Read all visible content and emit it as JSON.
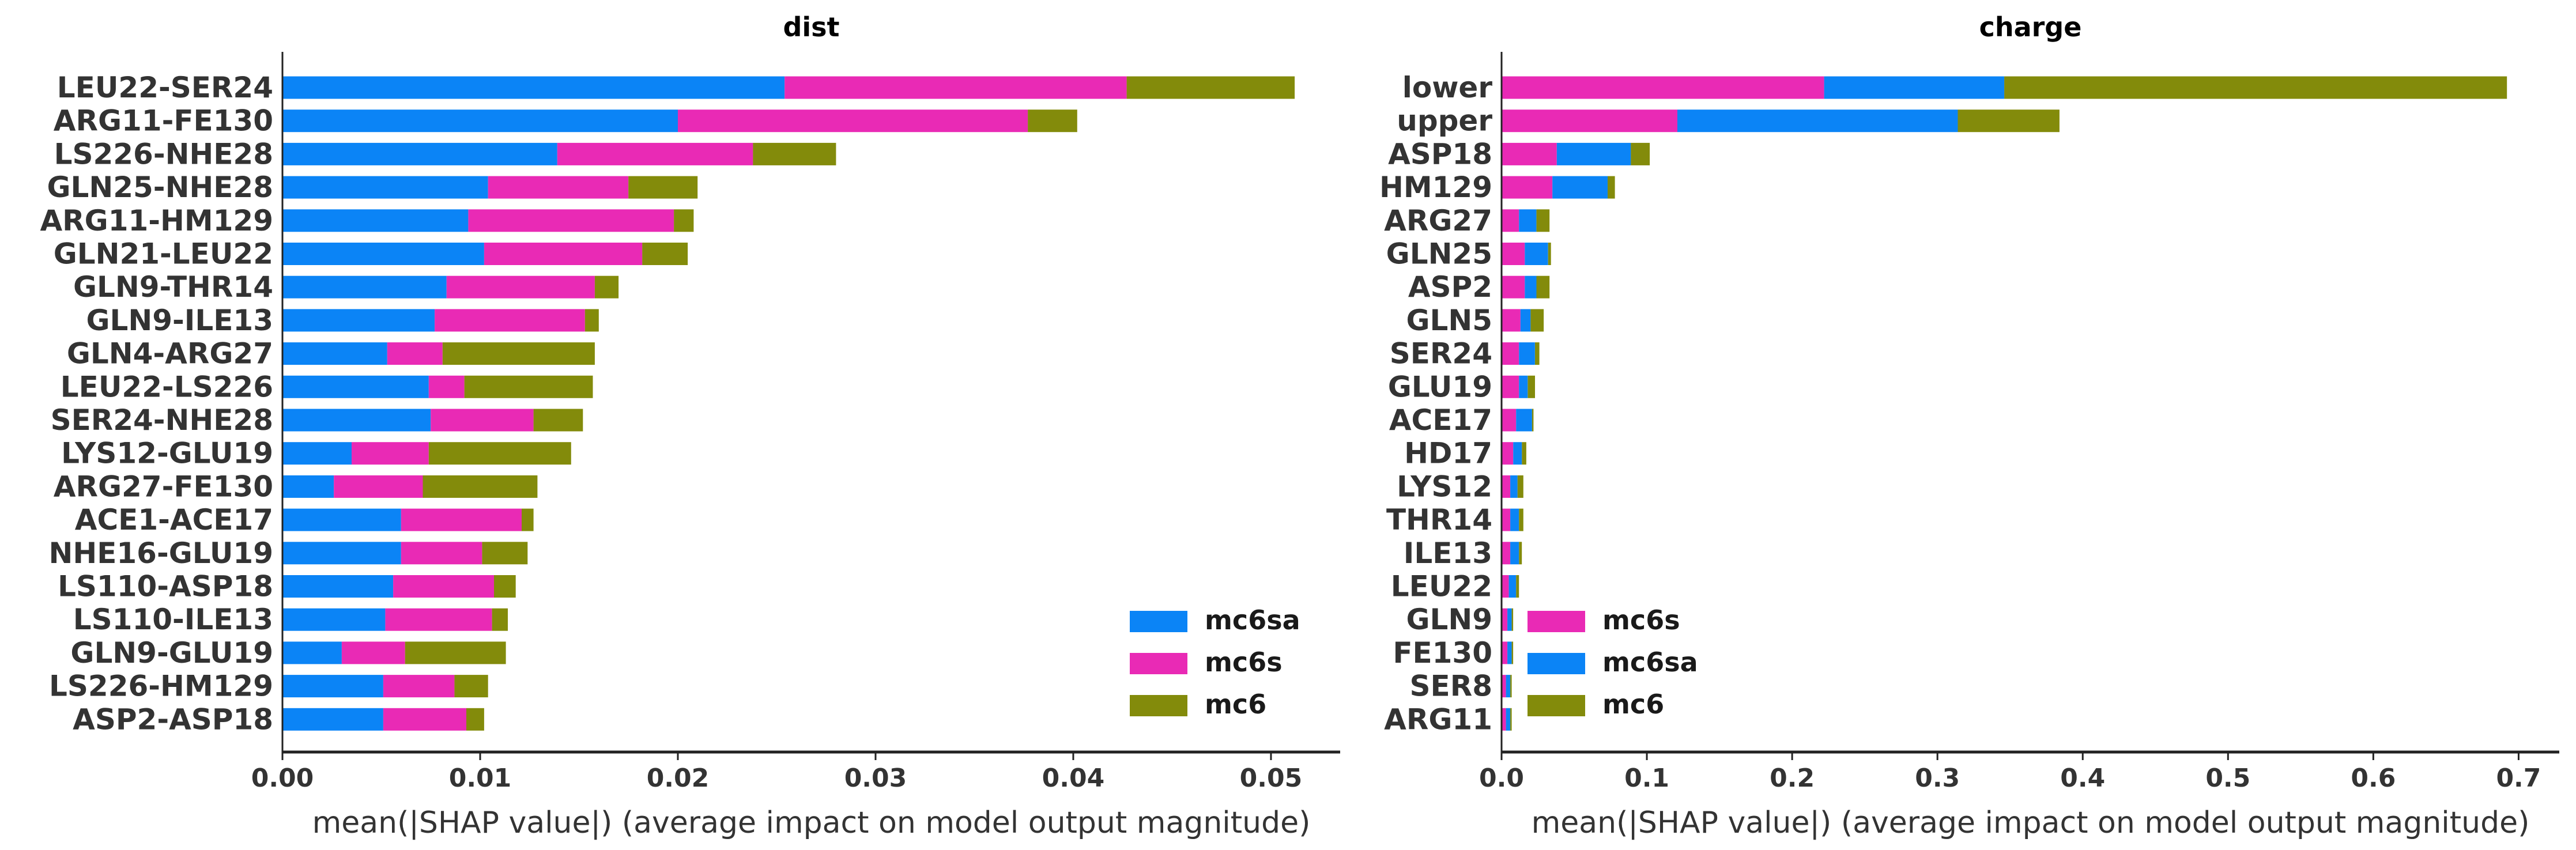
{
  "colors": {
    "mc6sa": "#0b84f6",
    "mc6s": "#e92ab5",
    "mc6": "#838b0b",
    "axis": "#222222",
    "text": "#333333"
  },
  "chart_data": [
    {
      "type": "bar",
      "orientation": "horizontal",
      "stacked": true,
      "title": "dist",
      "xlabel": "mean(|SHAP value|) (average impact on model output magnitude)",
      "xlim": [
        0,
        0.0535
      ],
      "xticks": [
        0.0,
        0.01,
        0.02,
        0.03,
        0.04,
        0.05
      ],
      "xtick_labels": [
        "0.00",
        "0.01",
        "0.02",
        "0.03",
        "0.04",
        "0.05"
      ],
      "legend_position": "lower-right",
      "categories": [
        "LEU22-SER24",
        "ARG11-FE130",
        "LS226-NHE28",
        "GLN25-NHE28",
        "ARG11-HM129",
        "GLN21-LEU22",
        "GLN9-THR14",
        "GLN9-ILE13",
        "GLN4-ARG27",
        "LEU22-LS226",
        "SER24-NHE28",
        "LYS12-GLU19",
        "ARG27-FE130",
        "ACE1-ACE17",
        "NHE16-GLU19",
        "LS110-ASP18",
        "LS110-ILE13",
        "GLN9-GLU19",
        "LS226-HM129",
        "ASP2-ASP18"
      ],
      "series": [
        {
          "name": "mc6sa",
          "values": [
            0.0254,
            0.02,
            0.0139,
            0.0104,
            0.0094,
            0.0102,
            0.0083,
            0.0077,
            0.0053,
            0.0074,
            0.0075,
            0.0035,
            0.0026,
            0.006,
            0.006,
            0.0056,
            0.0052,
            0.003,
            0.0051,
            0.0051
          ]
        },
        {
          "name": "mc6s",
          "values": [
            0.0173,
            0.0177,
            0.0099,
            0.0071,
            0.0104,
            0.008,
            0.0075,
            0.0076,
            0.0028,
            0.0018,
            0.0052,
            0.0039,
            0.0045,
            0.0061,
            0.0041,
            0.0051,
            0.0054,
            0.0032,
            0.0036,
            0.0042
          ]
        },
        {
          "name": "mc6",
          "values": [
            0.0085,
            0.0025,
            0.0042,
            0.0035,
            0.001,
            0.0023,
            0.0012,
            0.0007,
            0.0077,
            0.0065,
            0.0025,
            0.0072,
            0.0058,
            0.0006,
            0.0023,
            0.0011,
            0.0008,
            0.0051,
            0.0017,
            0.0009
          ]
        }
      ]
    },
    {
      "type": "bar",
      "orientation": "horizontal",
      "stacked": true,
      "title": "charge",
      "xlabel": "mean(|SHAP value|) (average impact on model output magnitude)",
      "xlim": [
        0,
        0.728
      ],
      "xticks": [
        0.0,
        0.1,
        0.2,
        0.3,
        0.4,
        0.5,
        0.6,
        0.7
      ],
      "xtick_labels": [
        "0.0",
        "0.1",
        "0.2",
        "0.3",
        "0.4",
        "0.5",
        "0.6",
        "0.7"
      ],
      "legend_position": "lower-left",
      "categories": [
        "lower",
        "upper",
        "ASP18",
        "HM129",
        "ARG27",
        "GLN25",
        "ASP2",
        "GLN5",
        "SER24",
        "GLU19",
        "ACE17",
        "HD17",
        "LYS12",
        "THR14",
        "ILE13",
        "LEU22",
        "GLN9",
        "FE130",
        "SER8",
        "ARG11"
      ],
      "series": [
        {
          "name": "mc6s",
          "values": [
            0.222,
            0.121,
            0.038,
            0.035,
            0.012,
            0.016,
            0.016,
            0.013,
            0.012,
            0.012,
            0.01,
            0.008,
            0.006,
            0.006,
            0.006,
            0.005,
            0.004,
            0.004,
            0.003,
            0.003
          ]
        },
        {
          "name": "mc6sa",
          "values": [
            0.124,
            0.193,
            0.051,
            0.038,
            0.012,
            0.016,
            0.008,
            0.007,
            0.011,
            0.006,
            0.011,
            0.006,
            0.005,
            0.006,
            0.006,
            0.005,
            0.003,
            0.003,
            0.003,
            0.003
          ]
        },
        {
          "name": "mc6",
          "values": [
            0.346,
            0.07,
            0.013,
            0.005,
            0.009,
            0.002,
            0.009,
            0.009,
            0.003,
            0.005,
            0.001,
            0.003,
            0.004,
            0.003,
            0.002,
            0.002,
            0.001,
            0.001,
            0.001,
            0.001
          ]
        }
      ]
    }
  ]
}
